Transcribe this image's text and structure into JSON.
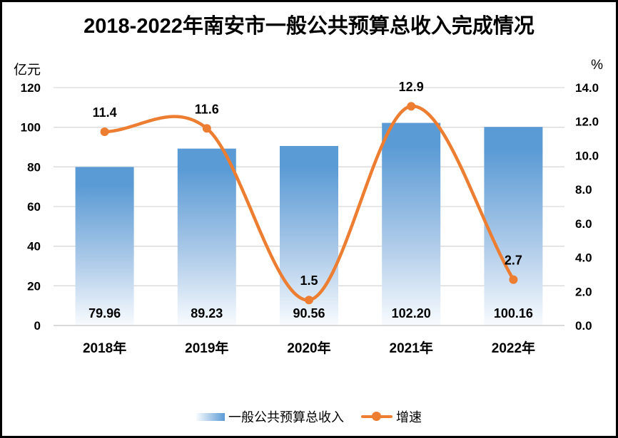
{
  "title": "2018-2022年南安市一般公共预算总收入完成情况",
  "left_axis": {
    "unit": "亿元",
    "min": 0,
    "max": 120,
    "step": 20,
    "tick_labels": [
      "120",
      "100",
      "80",
      "60",
      "40",
      "20",
      "0"
    ]
  },
  "right_axis": {
    "unit": "%",
    "min": 0,
    "max": 14,
    "step": 2,
    "tick_labels": [
      "14.0",
      "12.0",
      "10.0",
      "8.0",
      "6.0",
      "4.0",
      "2.0",
      "0.0"
    ]
  },
  "chart_data": {
    "type": "combo",
    "title": "2018-2022年南安市一般公共预算总收入完成情况",
    "categories": [
      "2018年",
      "2019年",
      "2020年",
      "2021年",
      "2022年"
    ],
    "series": [
      {
        "name": "一般公共预算总收入",
        "type": "bar",
        "axis": "left",
        "values": [
          79.96,
          89.23,
          90.56,
          102.2,
          100.16
        ],
        "value_labels": [
          "79.96",
          "89.23",
          "90.56",
          "102.20",
          "100.16"
        ]
      },
      {
        "name": "增速",
        "type": "line",
        "axis": "right",
        "smooth": true,
        "values": [
          11.4,
          11.6,
          1.5,
          12.9,
          2.7
        ],
        "value_labels": [
          "11.4",
          "11.6",
          "1.5",
          "12.9",
          "2.7"
        ]
      }
    ],
    "xlabel": "",
    "ylabel_left": "亿元",
    "ylabel_right": "%",
    "ylim_left": [
      0,
      120
    ],
    "ylim_right": [
      0,
      14
    ],
    "grid": true,
    "legend_position": "bottom"
  },
  "legend": {
    "bar_label": "一般公共预算总收入",
    "line_label": "增速"
  },
  "colors": {
    "bar_top": "#5B9BD5",
    "bar_mid": "#AECBE9",
    "bar_bottom": "#F8FBFE",
    "line": "#ED7D31",
    "gridline": "#D9D9D9",
    "axis_line": "#C8C8C8",
    "text": "#000000",
    "border": "#000000",
    "background": "#FFFFFF"
  }
}
